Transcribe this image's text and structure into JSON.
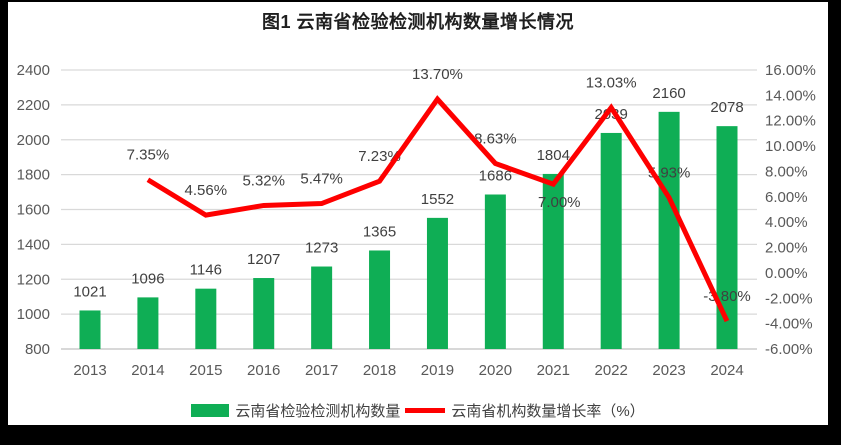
{
  "title": "图1 云南省检验检测机构数量增长情况",
  "legend": {
    "bar_label": "云南省检验检测机构数量",
    "line_label": "云南省机构数量增长率（%）"
  },
  "colors": {
    "bar": "#0fae55",
    "line": "#fe0000",
    "grid": "#d9d9d9",
    "baseline": "#c0c0c0",
    "axis_text": "#595959",
    "label_text": "#404040",
    "title_text": "#1f1f1f",
    "frame": "#000000",
    "plot_background": "#ffffff"
  },
  "chart_data": {
    "type": "combo-bar-line",
    "title": "图1 云南省检验检测机构数量增长情况",
    "categories": [
      "2013",
      "2014",
      "2015",
      "2016",
      "2017",
      "2018",
      "2019",
      "2020",
      "2021",
      "2022",
      "2023",
      "2024"
    ],
    "series": [
      {
        "name": "云南省检验检测机构数量",
        "type": "bar",
        "axis": "left",
        "color": "#0fae55",
        "values": [
          1021,
          1096,
          1146,
          1207,
          1273,
          1365,
          1552,
          1686,
          1804,
          2039,
          2160,
          2078
        ],
        "value_labels": [
          "1021",
          "1096",
          "1146",
          "1207",
          "1273",
          "1365",
          "1552",
          "1686",
          "1804",
          "2039",
          "2160",
          "2078"
        ]
      },
      {
        "name": "云南省机构数量增长率（%）",
        "type": "line",
        "axis": "right",
        "color": "#fe0000",
        "values": [
          null,
          7.35,
          4.56,
          5.32,
          5.47,
          7.23,
          13.7,
          8.63,
          7.0,
          13.03,
          5.93,
          -3.8
        ],
        "point_labels": [
          null,
          "7.35%",
          "4.56%",
          "5.32%",
          "5.47%",
          "7.23%",
          "13.70%",
          "8.63%",
          "7.00%",
          "13.03%",
          "5.93%",
          "-3.80%"
        ],
        "label_side": [
          null,
          "above",
          "above",
          "above",
          "above",
          "above",
          "above",
          "above",
          "below",
          "above",
          "above",
          "above"
        ]
      }
    ],
    "axes": {
      "left": {
        "min": 800,
        "max": 2400,
        "step": 200,
        "tick_labels": [
          "800",
          "1000",
          "1200",
          "1400",
          "1600",
          "1800",
          "2000",
          "2200",
          "2400"
        ]
      },
      "right": {
        "min": -6,
        "max": 16,
        "step": 2,
        "tick_labels_top_to_bottom": [
          "16.00%",
          "14.00%",
          "12.00%",
          "10.00%",
          "8.00%",
          "6.00%",
          "4.00%",
          "2.00%",
          "0.00%",
          "-2.00%",
          "-4.00%",
          "-6.00%"
        ]
      }
    },
    "grid": true,
    "legend_position": "bottom",
    "xlabel": "",
    "ylabel": ""
  }
}
